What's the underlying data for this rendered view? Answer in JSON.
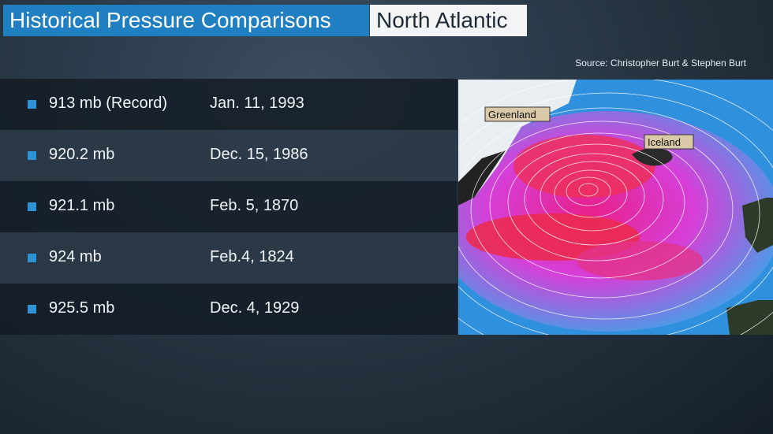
{
  "header": {
    "title": "Historical Pressure Comparisons",
    "region": "North Atlantic"
  },
  "source": "Source: Christopher Burt & Stephen Burt",
  "table": {
    "rows": [
      [
        "913 mb (Record)",
        "Jan. 11, 1993"
      ],
      [
        "920.2 mb",
        "Dec. 15, 1986"
      ],
      [
        "921.1 mb",
        "Feb. 5, 1870"
      ],
      [
        "924 mb",
        "Feb.4, 1824"
      ],
      [
        "925.5 mb",
        "Dec. 4, 1929"
      ]
    ]
  },
  "map": {
    "labels": [
      "Greenland",
      "Iceland"
    ]
  }
}
